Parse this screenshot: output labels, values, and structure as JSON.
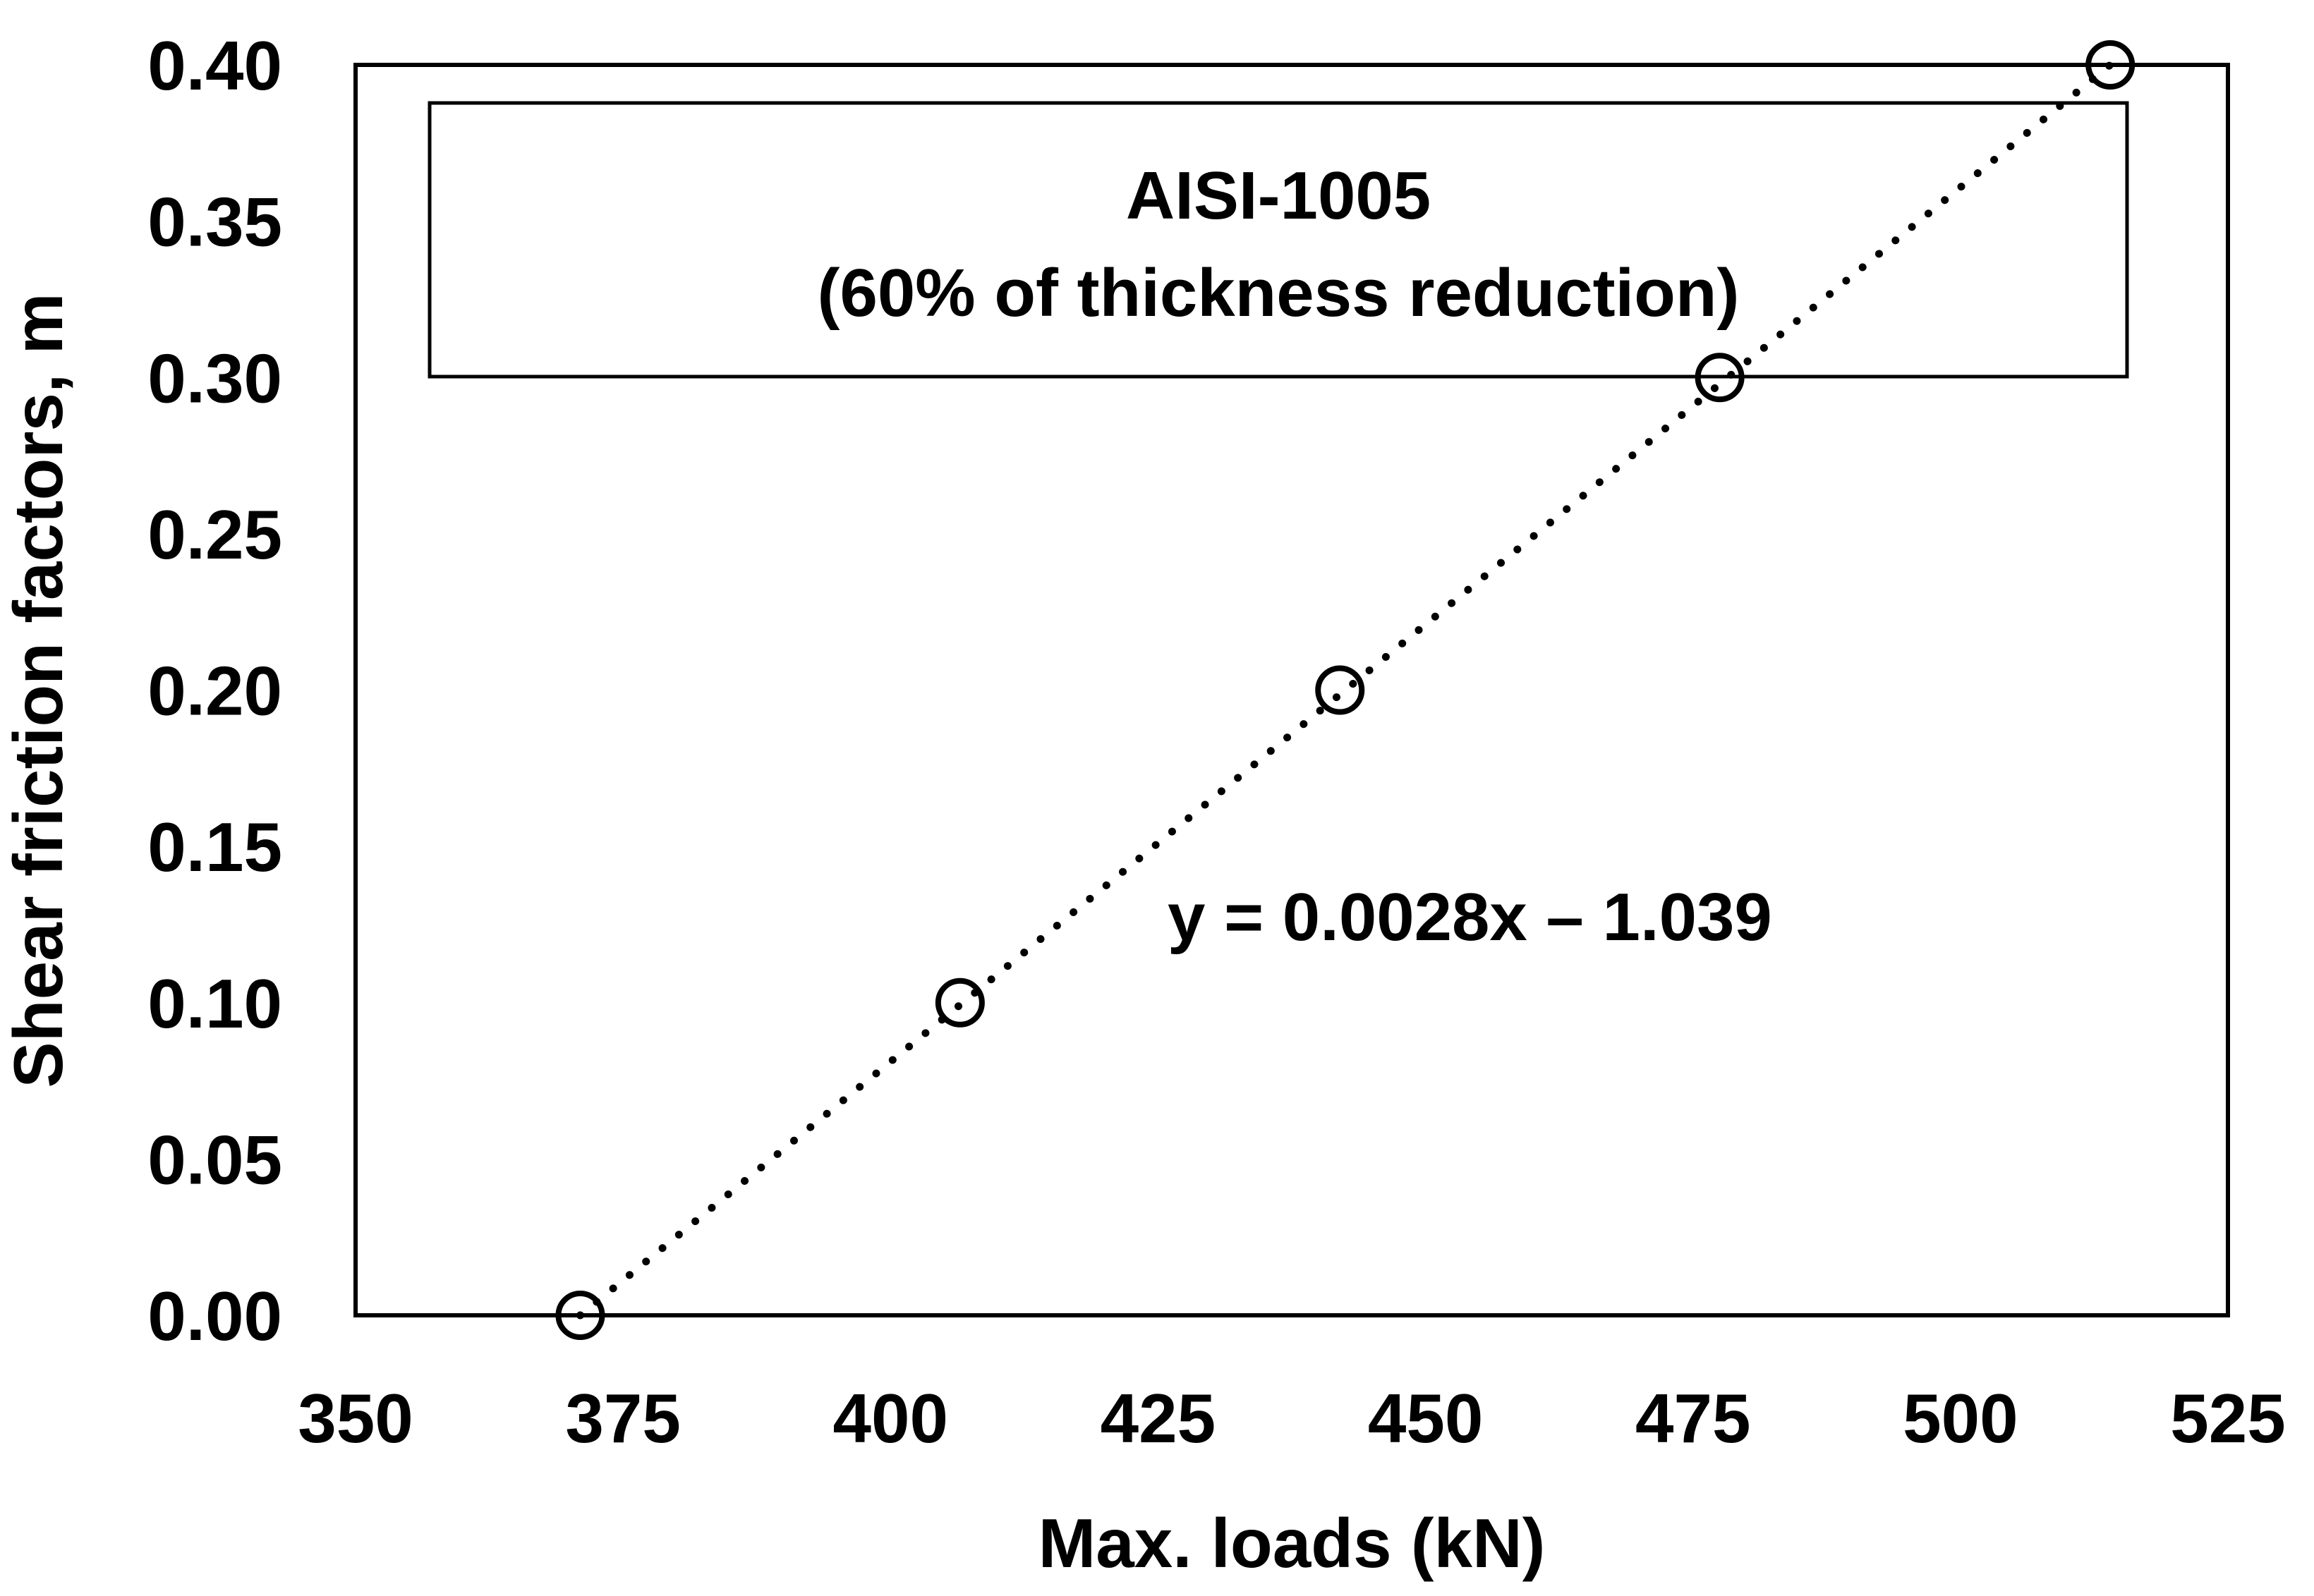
{
  "chart_data": {
    "type": "scatter",
    "title": "",
    "xlabel": "Max. loads (kN)",
    "ylabel": "Shear friction factors, m",
    "xlim": [
      350,
      525
    ],
    "ylim": [
      0,
      0.4
    ],
    "x_ticks": [
      "350",
      "375",
      "400",
      "425",
      "450",
      "475",
      "500",
      "525"
    ],
    "y_ticks": [
      "0.00",
      "0.05",
      "0.10",
      "0.15",
      "0.20",
      "0.25",
      "0.30",
      "0.35",
      "0.40"
    ],
    "grid": false,
    "series": [
      {
        "name": "AISI-1005",
        "marker": "open-circle",
        "x": [
          371,
          406.5,
          442,
          477.5,
          514
        ],
        "y": [
          0.0,
          0.1,
          0.2,
          0.3,
          0.4
        ]
      }
    ],
    "trendline": {
      "style": "dotted",
      "equation": "y = 0.0028x – 1.039",
      "slope": 0.0028,
      "intercept": -1.039
    },
    "annotation_box": {
      "line1": "AISI-1005",
      "line2": "(60% of thickness reduction)"
    }
  },
  "colors": {
    "axis": "#000000",
    "marker_stroke": "#000000",
    "marker_fill": "#ffffff",
    "background": "#ffffff"
  }
}
